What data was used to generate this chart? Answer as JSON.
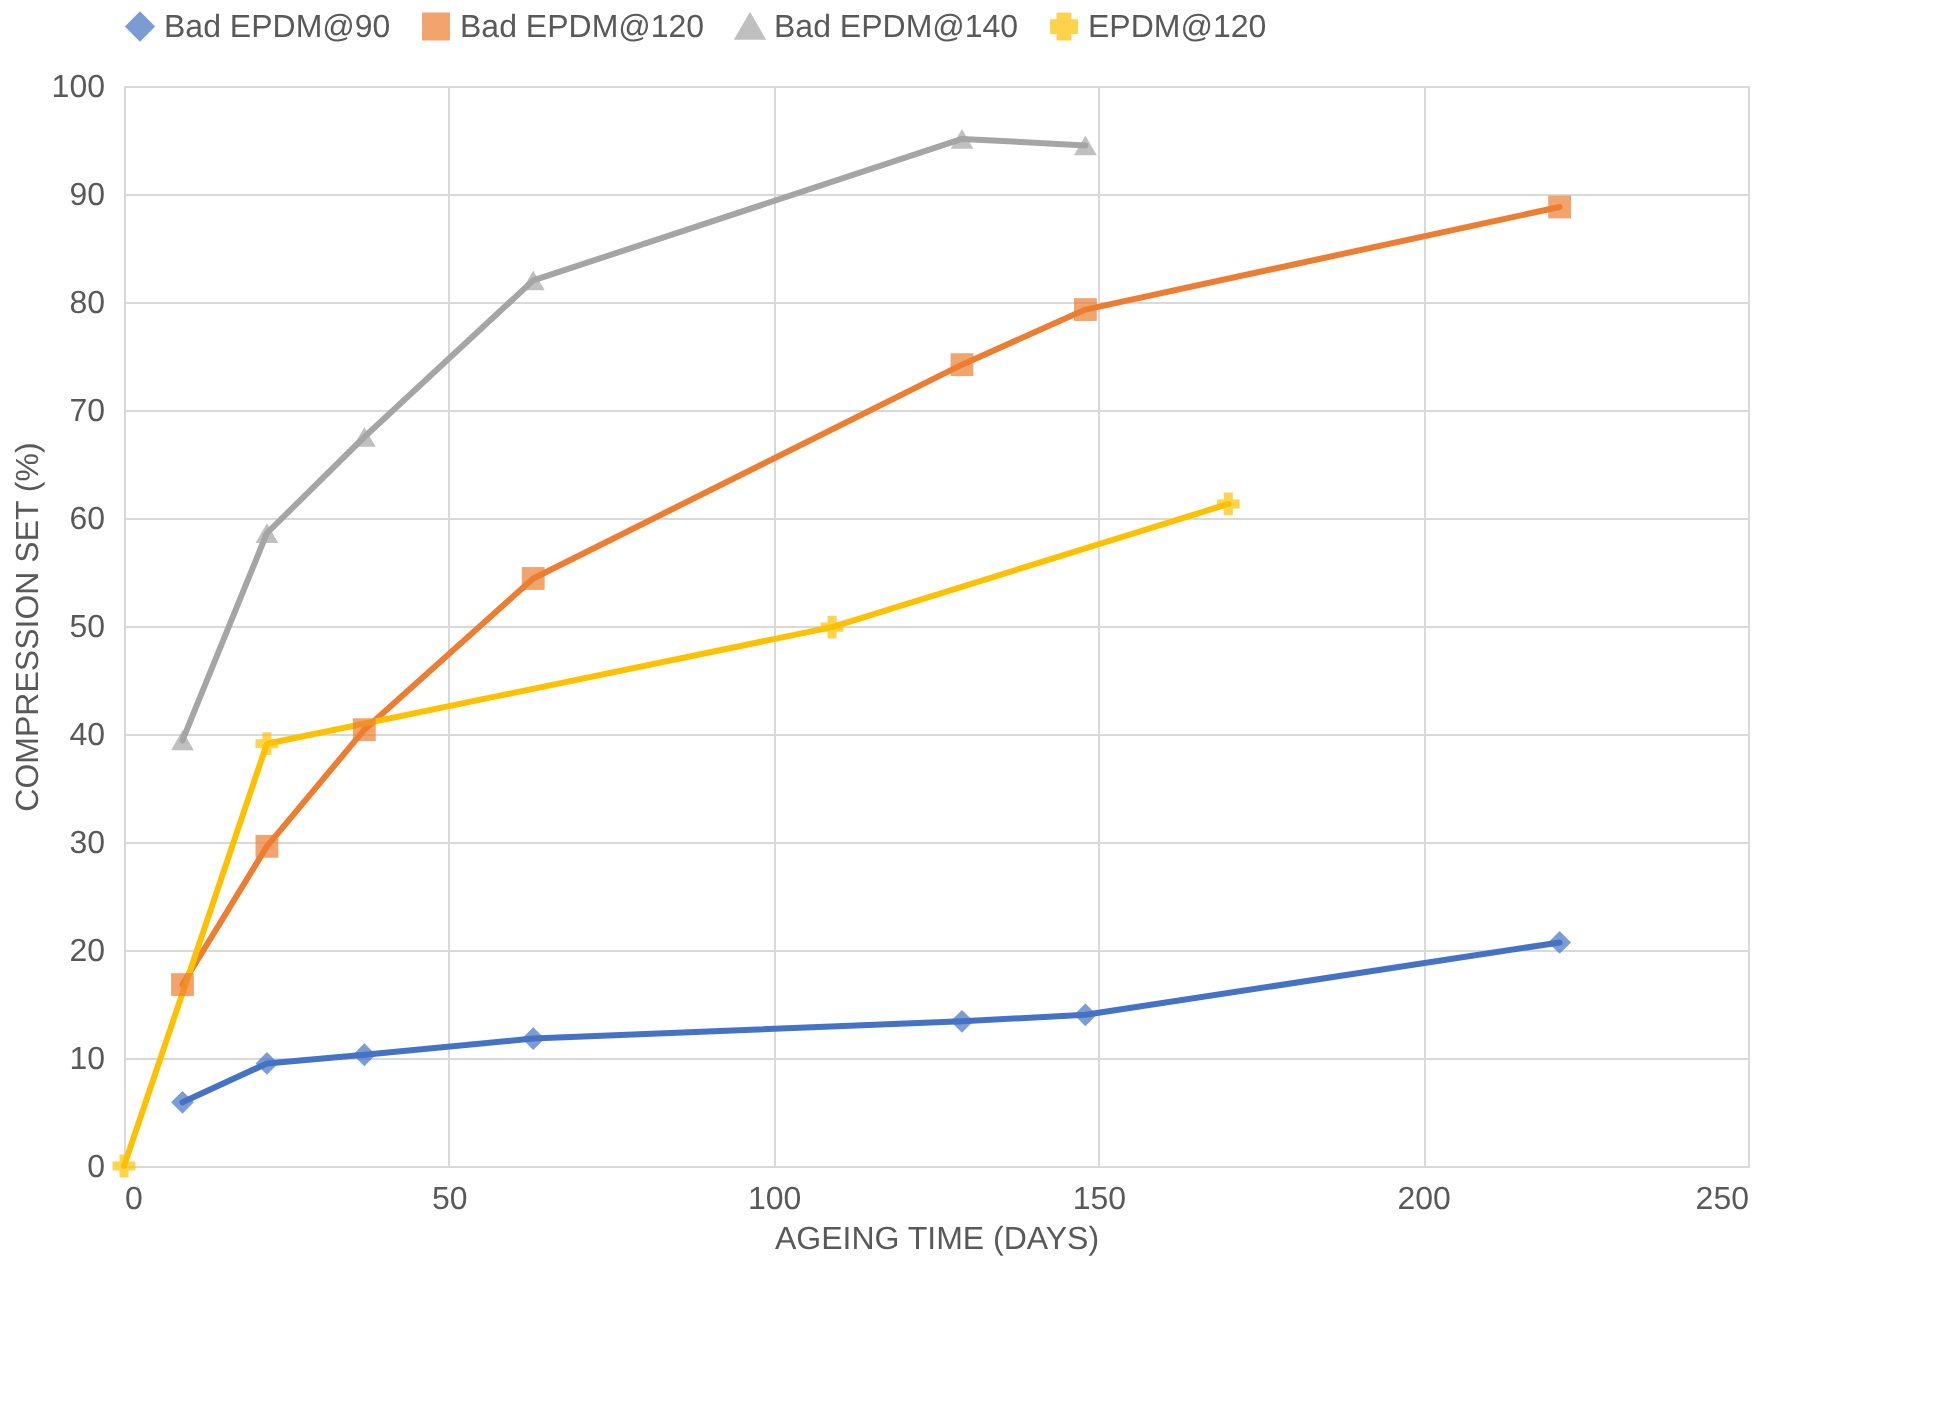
{
  "chart_data": {
    "type": "line",
    "xlabel": "AGEING TIME  (DAYS)",
    "ylabel": "COMPRESSION SET (%)",
    "xlim": [
      0,
      250
    ],
    "xticks": [
      0,
      50,
      100,
      150,
      200,
      250
    ],
    "ylim": [
      0,
      100
    ],
    "yticks": [
      0,
      10,
      20,
      30,
      40,
      50,
      60,
      70,
      80,
      90,
      100
    ],
    "grid": true,
    "legend": "top",
    "series": [
      {
        "name": "Bad EPDM@90",
        "color": "#4472c4",
        "marker": "diamond",
        "x": [
          9,
          22,
          37,
          63,
          129,
          148,
          221
        ],
        "values": [
          5.9,
          9.5,
          10.3,
          11.8,
          13.4,
          14.0,
          20.7
        ]
      },
      {
        "name": "Bad EPDM@120",
        "color": "#ed7d31",
        "marker": "square",
        "x": [
          9,
          22,
          37,
          63,
          129,
          148,
          221
        ],
        "values": [
          16.8,
          29.6,
          40.4,
          54.4,
          74.2,
          79.3,
          88.8
        ]
      },
      {
        "name": "Bad EPDM@140",
        "color": "#a5a5a5",
        "marker": "triangle",
        "x": [
          9,
          22,
          37,
          63,
          129,
          148
        ],
        "values": [
          39.4,
          58.6,
          67.5,
          82.0,
          95.1,
          94.5
        ]
      },
      {
        "name": "EPDM@120",
        "color": "#ffc000",
        "marker": "cross",
        "x": [
          0,
          22,
          109,
          170
        ],
        "values": [
          0,
          39.1,
          49.9,
          61.3
        ]
      }
    ]
  }
}
